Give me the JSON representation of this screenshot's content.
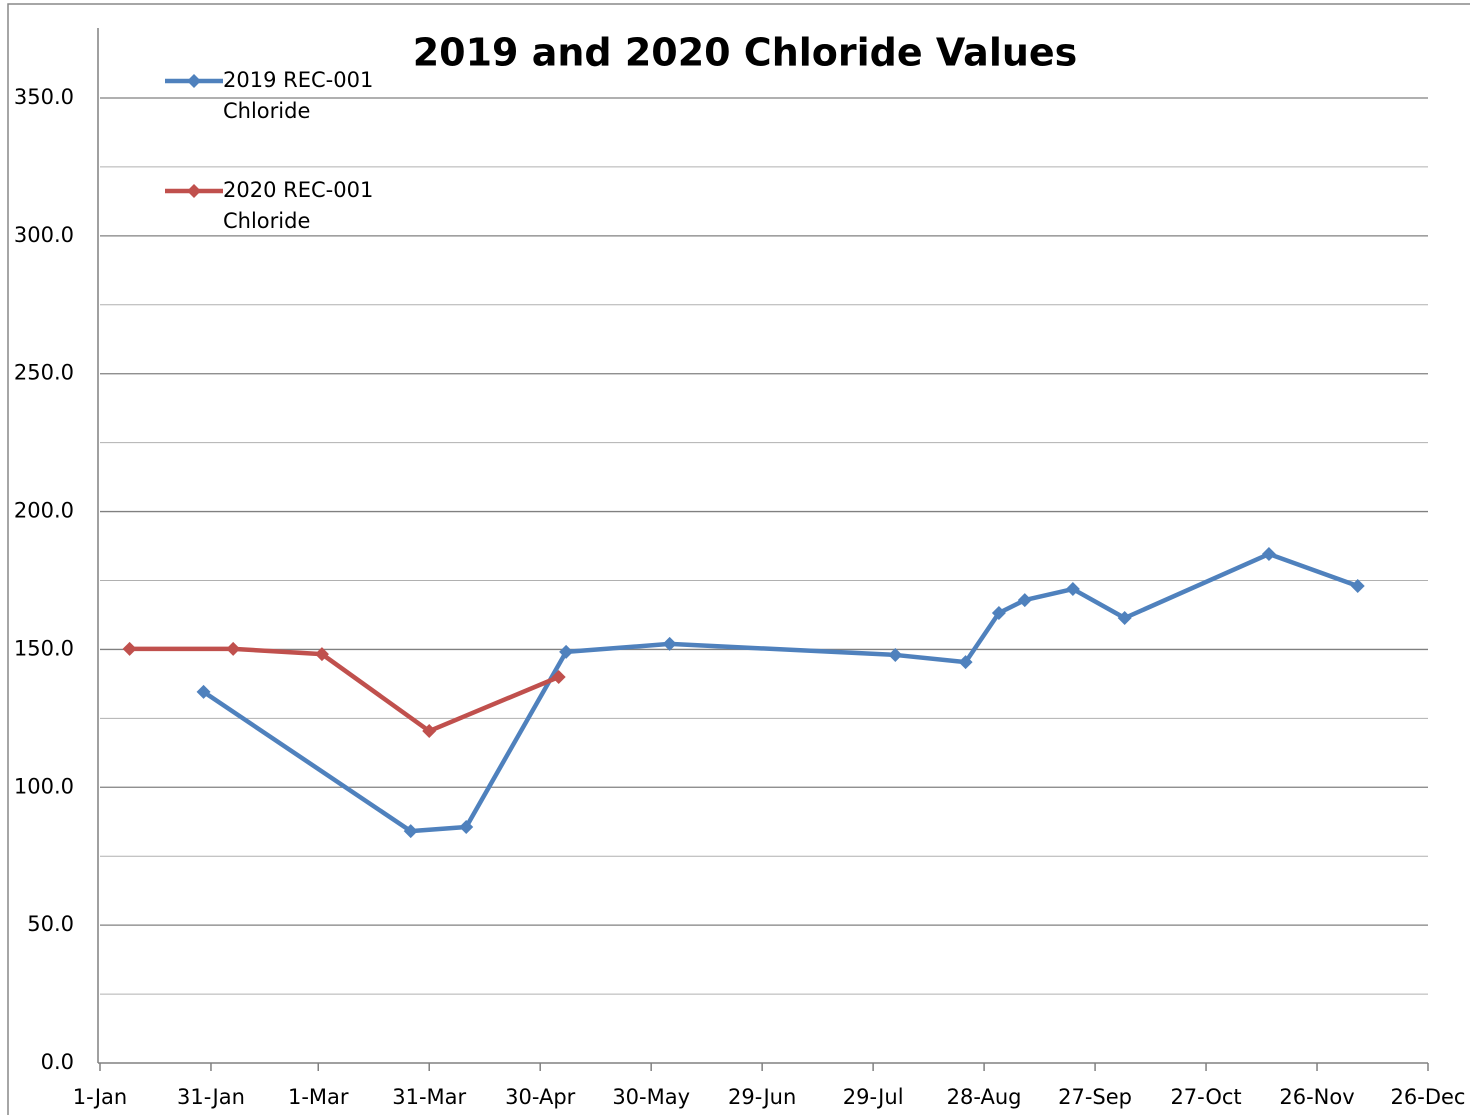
{
  "chart_data": {
    "type": "line",
    "title": "2019 and 2020 Chloride Values",
    "series": [
      {
        "name": "2019 REC-001 Chloride",
        "color": "#4f81bd",
        "x": [
          28,
          84,
          99,
          126,
          154,
          215,
          234,
          243,
          250,
          263,
          277,
          316,
          340
        ],
        "values": [
          134.6,
          84.1,
          85.6,
          149.1,
          152.0,
          148.0,
          145.4,
          163.2,
          167.9,
          171.9,
          161.4,
          184.6,
          173.0
        ]
      },
      {
        "name": "2020 REC-001 Chloride",
        "color": "#c0504d",
        "x": [
          8,
          36,
          60,
          89,
          124
        ],
        "values": [
          150.2,
          150.2,
          148.3,
          120.4,
          140.0
        ]
      }
    ],
    "xlim": [
      0,
      359
    ],
    "xticks": [
      {
        "value": 0,
        "label": "1-Jan"
      },
      {
        "value": 30,
        "label": "31-Jan"
      },
      {
        "value": 59,
        "label": "1-Mar"
      },
      {
        "value": 89,
        "label": "31-Mar"
      },
      {
        "value": 119,
        "label": "30-Apr"
      },
      {
        "value": 149,
        "label": "30-May"
      },
      {
        "value": 179,
        "label": "29-Jun"
      },
      {
        "value": 209,
        "label": "29-Jul"
      },
      {
        "value": 239,
        "label": "28-Aug"
      },
      {
        "value": 269,
        "label": "27-Sep"
      },
      {
        "value": 299,
        "label": "27-Oct"
      },
      {
        "value": 329,
        "label": "26-Nov"
      },
      {
        "value": 359,
        "label": "26-Dec"
      }
    ],
    "ylim": [
      0,
      350
    ],
    "yticks": [
      {
        "value": 0,
        "label": "0.0"
      },
      {
        "value": 50,
        "label": "50.0"
      },
      {
        "value": 100,
        "label": "100.0"
      },
      {
        "value": 150,
        "label": "150.0"
      },
      {
        "value": 200,
        "label": "200.0"
      },
      {
        "value": 250,
        "label": "250.0"
      },
      {
        "value": 300,
        "label": "300.0"
      },
      {
        "value": 350,
        "label": "350.0"
      }
    ],
    "minor_yticks": [
      25,
      75,
      125,
      175,
      225,
      275,
      325
    ],
    "grid": true,
    "legend": "upper left"
  }
}
